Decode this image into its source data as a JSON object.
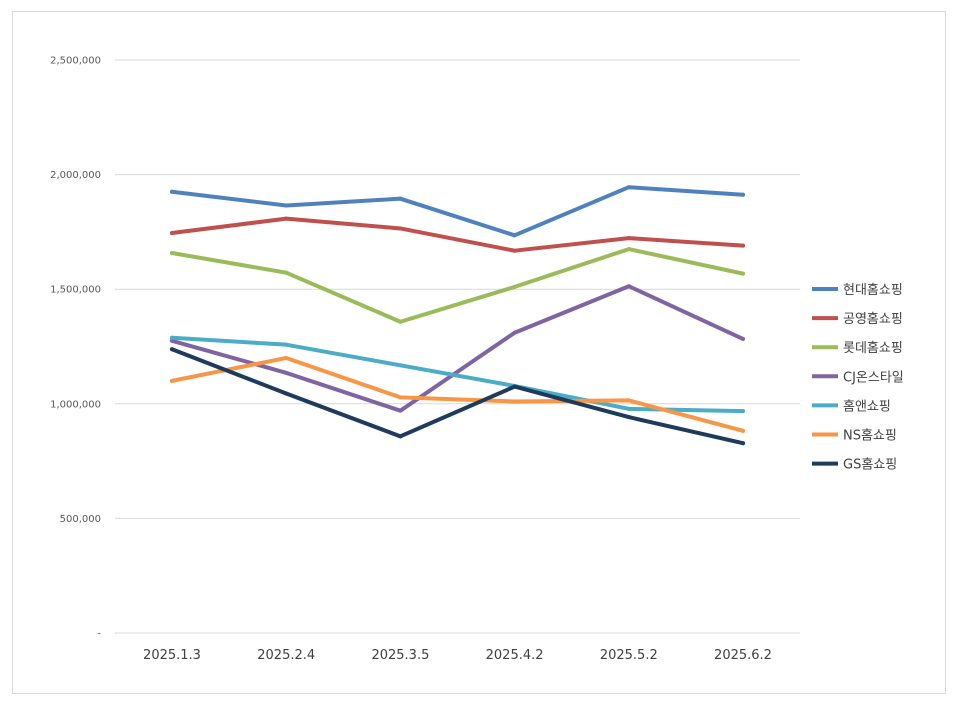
{
  "chart_data": {
    "type": "line",
    "title": "",
    "xlabel": "",
    "ylabel": "",
    "categories": [
      "2025.1.3",
      "2025.2.4",
      "2025.3.5",
      "2025.4.2",
      "2025.5.2",
      "2025.6.2"
    ],
    "ylim": [
      0,
      2500000
    ],
    "y_ticks": [
      0,
      500000,
      1000000,
      1500000,
      2000000,
      2500000
    ],
    "y_tick_labels": [
      "-",
      "500,000",
      "1,000,000",
      "1,500,000",
      "2,000,000",
      "2,500,000"
    ],
    "grid": true,
    "legend_position": "right",
    "series": [
      {
        "name": "현대홈쇼핑",
        "color": "#4f81bd",
        "values": [
          1925000,
          1865000,
          1895000,
          1735000,
          1945000,
          1912000
        ]
      },
      {
        "name": "공영홈쇼핑",
        "color": "#c0504d",
        "values": [
          1745000,
          1808000,
          1765000,
          1668000,
          1723000,
          1690000
        ]
      },
      {
        "name": "롯데홈쇼핑",
        "color": "#9bbb59",
        "values": [
          1658000,
          1572000,
          1358000,
          1510000,
          1675000,
          1568000
        ]
      },
      {
        "name": "CJ온스타일",
        "color": "#8064a2",
        "values": [
          1275000,
          1135000,
          970000,
          1310000,
          1513000,
          1283000
        ]
      },
      {
        "name": "홈앤쇼핑",
        "color": "#4bacc6",
        "values": [
          1288000,
          1258000,
          1168000,
          1078000,
          978000,
          968000
        ]
      },
      {
        "name": "NS홈쇼핑",
        "color": "#f79646",
        "values": [
          1100000,
          1200000,
          1028000,
          1010000,
          1015000,
          882000
        ]
      },
      {
        "name": "GS홈쇼핑",
        "color": "#1f3b5c",
        "values": [
          1238000,
          1045000,
          858000,
          1075000,
          942000,
          828000
        ]
      }
    ]
  }
}
